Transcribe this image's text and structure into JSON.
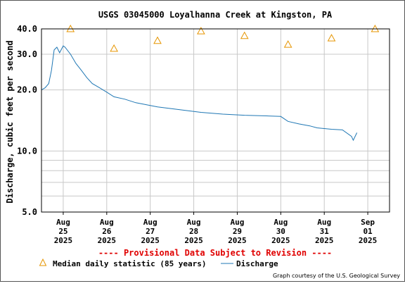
{
  "chart_data": {
    "type": "line",
    "title": "USGS 03045000 Loyalhanna Creek at Kingston, PA",
    "ylabel": "Discharge, cubic feet per second",
    "y_scale": "log",
    "ylim": [
      5.0,
      40.0
    ],
    "y_ticks": [
      "40.0",
      "30.0",
      "20.0",
      "10.0",
      "5.0"
    ],
    "x_ticks": [
      {
        "month": "Aug",
        "day": "25",
        "year": "2025"
      },
      {
        "month": "Aug",
        "day": "26",
        "year": "2025"
      },
      {
        "month": "Aug",
        "day": "27",
        "year": "2025"
      },
      {
        "month": "Aug",
        "day": "28",
        "year": "2025"
      },
      {
        "month": "Aug",
        "day": "29",
        "year": "2025"
      },
      {
        "month": "Aug",
        "day": "30",
        "year": "2025"
      },
      {
        "month": "Aug",
        "day": "31",
        "year": "2025"
      },
      {
        "month": "Sep",
        "day": "01",
        "year": "2025"
      }
    ],
    "grid": true,
    "series": [
      {
        "name": "Discharge",
        "color": "#1f77b4",
        "x": [
          "2025-08-24 20:00",
          "2025-08-24 22:00",
          "2025-08-25 00:00",
          "2025-08-25 01:30",
          "2025-08-25 03:00",
          "2025-08-25 04:30",
          "2025-08-25 06:00",
          "2025-08-25 08:00",
          "2025-08-25 09:00",
          "2025-08-25 12:00",
          "2025-08-25 15:00",
          "2025-08-25 18:00",
          "2025-08-25 21:00",
          "2025-08-26 00:00",
          "2025-08-26 04:00",
          "2025-08-26 08:00",
          "2025-08-26 12:00",
          "2025-08-26 18:00",
          "2025-08-27 00:00",
          "2025-08-27 12:00",
          "2025-08-28 00:00",
          "2025-08-28 12:00",
          "2025-08-29 00:00",
          "2025-08-29 12:00",
          "2025-08-30 00:00",
          "2025-08-30 08:00",
          "2025-08-30 12:00",
          "2025-08-30 18:00",
          "2025-08-31 00:00",
          "2025-08-31 04:00",
          "2025-08-31 12:00",
          "2025-08-31 18:00",
          "2025-08-31 23:00",
          "2025-09-01 00:00",
          "2025-09-01 02:00"
        ],
        "values": [
          20.0,
          20.5,
          21.5,
          25.0,
          31.5,
          32.5,
          30.5,
          33.0,
          32.5,
          30.0,
          27.0,
          25.0,
          23.0,
          21.5,
          20.5,
          19.5,
          18.5,
          18.0,
          17.3,
          16.5,
          16.0,
          15.5,
          15.2,
          15.0,
          14.9,
          14.8,
          14.0,
          13.6,
          13.3,
          13.0,
          12.8,
          12.7,
          11.8,
          11.3,
          12.3
        ]
      }
    ],
    "median_stats": {
      "name": "Median daily statistic (85 years)",
      "color": "#e69500",
      "dates": [
        "2025-08-25",
        "2025-08-26",
        "2025-08-27",
        "2025-08-28",
        "2025-08-29",
        "2025-08-30",
        "2025-08-31",
        "2025-09-01"
      ],
      "values": [
        40.0,
        32.0,
        35.0,
        39.0,
        37.0,
        33.5,
        36.0,
        40.0
      ]
    }
  },
  "notice": "---- Provisional Data Subject to Revision ----",
  "legend": {
    "median_label": "Median daily statistic (85 years)",
    "discharge_label": "Discharge"
  },
  "credit": "Graph courtesy of the U.S. Geological Survey"
}
